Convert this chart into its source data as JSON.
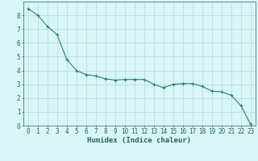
{
  "x": [
    0,
    1,
    2,
    3,
    4,
    5,
    6,
    7,
    8,
    9,
    10,
    11,
    12,
    13,
    14,
    15,
    16,
    17,
    18,
    19,
    20,
    21,
    22,
    23
  ],
  "y": [
    8.5,
    8.0,
    7.2,
    6.6,
    4.8,
    4.0,
    3.7,
    3.6,
    3.4,
    3.3,
    3.35,
    3.35,
    3.35,
    3.0,
    2.75,
    3.0,
    3.05,
    3.05,
    2.85,
    2.5,
    2.45,
    2.2,
    1.45,
    0.1
  ],
  "line_color": "#2e7d6e",
  "marker": "+",
  "marker_size": 3,
  "marker_linewidth": 0.8,
  "line_width": 0.8,
  "bg_color": "#d9f5f5",
  "grid_color": "#b8d8d8",
  "xlabel": "Humidex (Indice chaleur)",
  "xlim": [
    -0.5,
    23.5
  ],
  "ylim": [
    0,
    9
  ],
  "xticks": [
    0,
    1,
    2,
    3,
    4,
    5,
    6,
    7,
    8,
    9,
    10,
    11,
    12,
    13,
    14,
    15,
    16,
    17,
    18,
    19,
    20,
    21,
    22,
    23
  ],
  "yticks": [
    0,
    1,
    2,
    3,
    4,
    5,
    6,
    7,
    8
  ],
  "tick_fontsize": 5.5,
  "xlabel_fontsize": 6.5,
  "tick_color": "#2e6060",
  "spine_color": "#2e6060"
}
